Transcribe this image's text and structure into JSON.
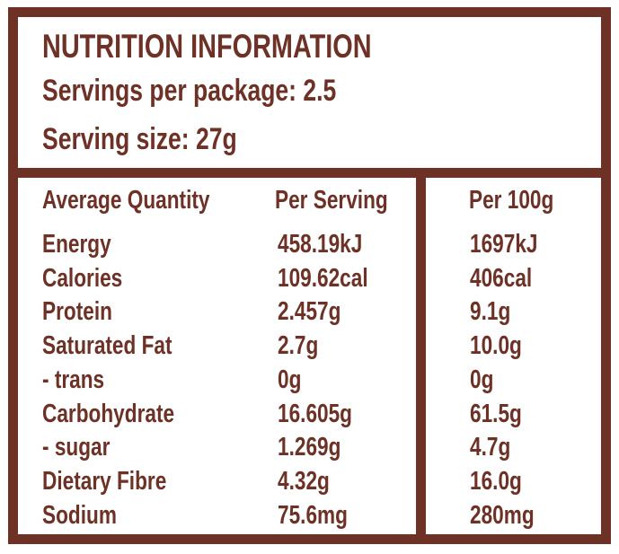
{
  "title": "NUTRITION INFORMATION",
  "servings_per_package": {
    "label": "Servings per package:",
    "value": "2.5"
  },
  "serving_size": {
    "label": "Serving size:",
    "value": "27g"
  },
  "columns": [
    "Average Quantity",
    "Per Serving",
    "Per 100g"
  ],
  "rows": [
    {
      "name": "Energy",
      "per_serving": "458.19kJ",
      "per_100g": "1697kJ"
    },
    {
      "name": "Calories",
      "per_serving": "109.62cal",
      "per_100g": "406cal"
    },
    {
      "name": "Protein",
      "per_serving": "2.457g",
      "per_100g": "9.1g"
    },
    {
      "name": "Saturated Fat",
      "per_serving": "2.7g",
      "per_100g": "10.0g"
    },
    {
      "name": "- trans",
      "per_serving": "0g",
      "per_100g": "0g"
    },
    {
      "name": "Carbohydrate",
      "per_serving": "16.605g",
      "per_100g": "61.5g"
    },
    {
      "name": "- sugar",
      "per_serving": "1.269g",
      "per_100g": "4.7g"
    },
    {
      "name": "Dietary Fibre",
      "per_serving": "4.32g",
      "per_100g": "16.0g"
    },
    {
      "name": "Sodium",
      "per_serving": "75.6mg",
      "per_100g": "280mg"
    }
  ],
  "colors": {
    "brand": "#6e3126",
    "background": "#ffffff"
  }
}
